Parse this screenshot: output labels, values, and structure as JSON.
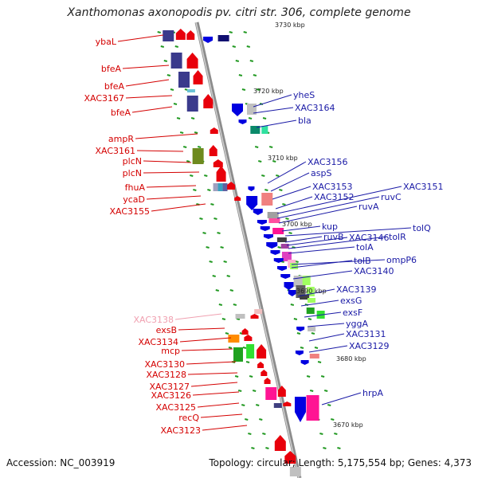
{
  "title": "Xanthomonas axonopodis pv. citri str. 306, complete genome",
  "footer": {
    "accession": "Accession: NC_003919",
    "topology": "Topology: circular; Length: 5,175,554 bp; Genes: 4,373"
  },
  "colors": {
    "reverse_strand": "#e8000b",
    "forward_strand": "#0000e0",
    "label_left": "#d40000",
    "label_right": "#1a1aa6",
    "backbone": "#8c8c8c",
    "orf_dash": "#229922"
  },
  "kbp_ticks": [
    {
      "label": "3730 kbp"
    },
    {
      "label": "3720 kbp"
    },
    {
      "label": "3710 kbp"
    },
    {
      "label": "3700 kbp"
    },
    {
      "label": "3690 kbp"
    },
    {
      "label": "3680 kbp"
    },
    {
      "label": "3670 kbp"
    }
  ],
  "left_labels": [
    {
      "text": "ybaL"
    },
    {
      "text": "bfeA"
    },
    {
      "text": "bfeA"
    },
    {
      "text": "XAC3167"
    },
    {
      "text": "bfeA"
    },
    {
      "text": "ampR"
    },
    {
      "text": "XAC3161"
    },
    {
      "text": "plcN"
    },
    {
      "text": "plcN"
    },
    {
      "text": "fhuA"
    },
    {
      "text": "ycaD"
    },
    {
      "text": "XAC3155"
    },
    {
      "text": "XAC3138",
      "pale": true
    },
    {
      "text": "exsB"
    },
    {
      "text": "XAC3134"
    },
    {
      "text": "mcp"
    },
    {
      "text": "XAC3130"
    },
    {
      "text": "XAC3128"
    },
    {
      "text": "XAC3127"
    },
    {
      "text": "XAC3126"
    },
    {
      "text": "XAC3125"
    },
    {
      "text": "recQ"
    },
    {
      "text": "XAC3123"
    }
  ],
  "right_labels": [
    {
      "text": "yheS"
    },
    {
      "text": "XAC3164"
    },
    {
      "text": "bla"
    },
    {
      "text": "XAC3156"
    },
    {
      "text": "aspS"
    },
    {
      "text": "XAC3153"
    },
    {
      "text": "XAC3151"
    },
    {
      "text": "XAC3152"
    },
    {
      "text": "ruvC"
    },
    {
      "text": "ruvA"
    },
    {
      "text": "kup"
    },
    {
      "text": "tolQ"
    },
    {
      "text": "ruvB"
    },
    {
      "text": "XAC3146"
    },
    {
      "text": "tolR"
    },
    {
      "text": "tolA"
    },
    {
      "text": "ompP6"
    },
    {
      "text": "tolB"
    },
    {
      "text": "XAC3140"
    },
    {
      "text": "XAC3139"
    },
    {
      "text": "exsG"
    },
    {
      "text": "exsF"
    },
    {
      "text": "yggA"
    },
    {
      "text": "XAC3131"
    },
    {
      "text": "XAC3129"
    },
    {
      "text": "hrpA"
    }
  ]
}
